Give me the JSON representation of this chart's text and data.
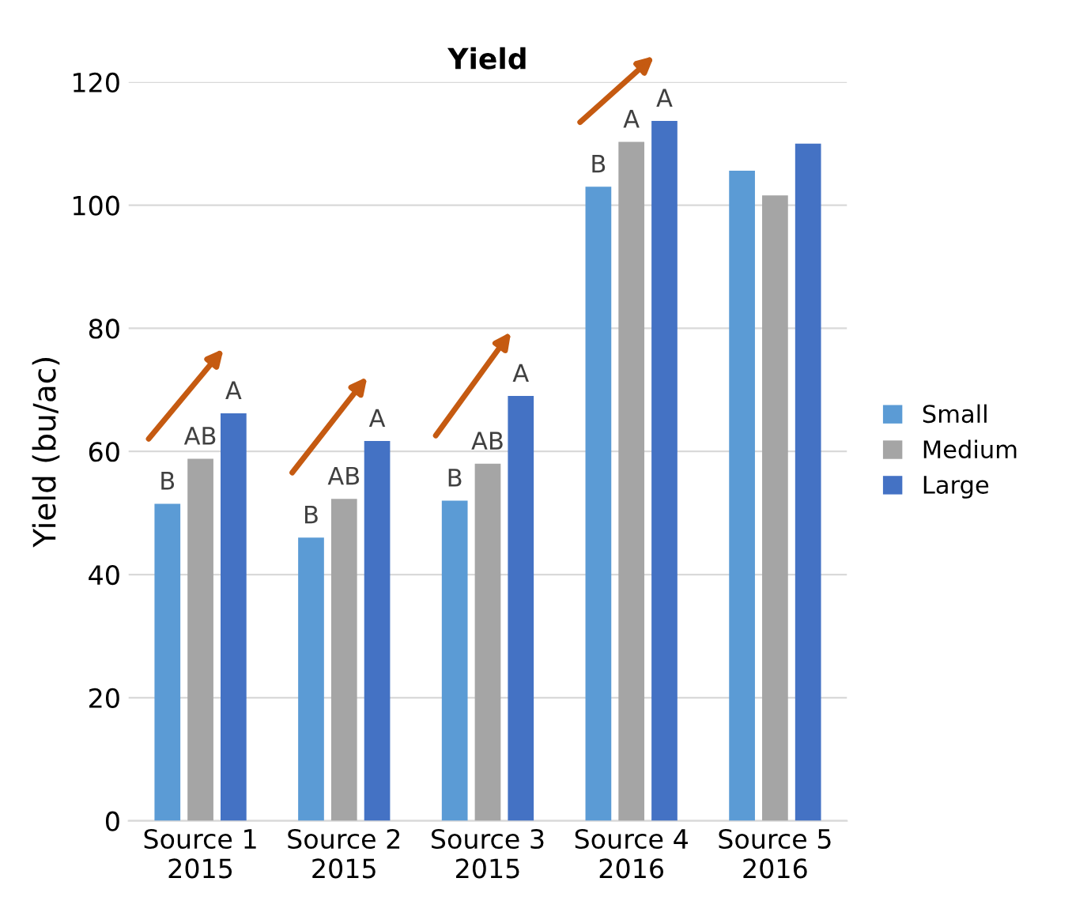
{
  "chart_data": {
    "type": "bar",
    "title": "Yield",
    "ylabel": "Yield (bu/ac)",
    "categories": [
      "Source 1\n2015",
      "Source 2\n2015",
      "Source 3\n2015",
      "Source 4\n2016",
      "Source 5\n2016"
    ],
    "series": [
      {
        "name": "Small",
        "color": "#5b9bd5",
        "values": [
          51.5,
          46,
          52,
          103,
          105.6
        ]
      },
      {
        "name": "Medium",
        "color": "#a5a5a5",
        "values": [
          58.8,
          52.3,
          58,
          110.3,
          101.6
        ]
      },
      {
        "name": "Large",
        "color": "#4472c4",
        "values": [
          66.2,
          61.7,
          69,
          113.7,
          110
        ]
      }
    ],
    "ylim": [
      0,
      120
    ],
    "yticks": [
      0,
      20,
      40,
      60,
      80,
      100,
      120
    ],
    "grid": "y",
    "legend": "right",
    "annotations": [
      "B",
      "AB",
      "A",
      "B",
      "AB",
      "A",
      "B",
      "AB",
      "A",
      "B",
      "A",
      "A"
    ]
  }
}
